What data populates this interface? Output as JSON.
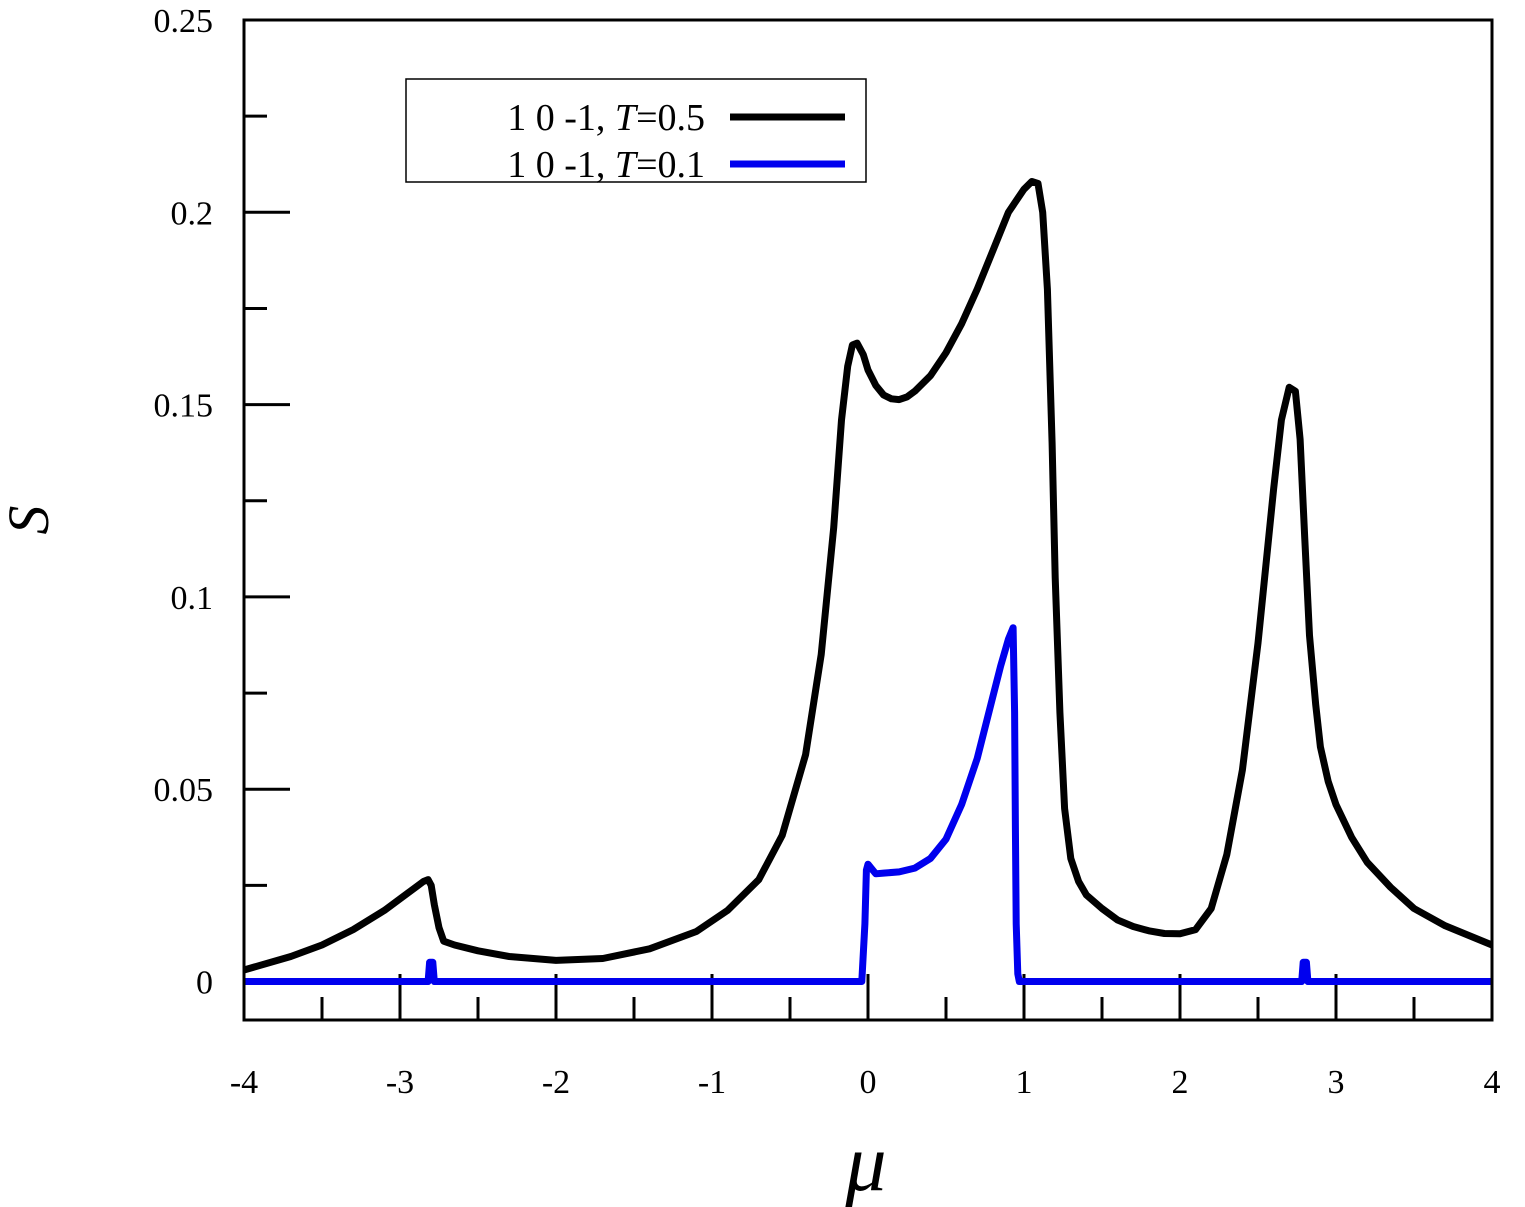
{
  "chart_data": {
    "type": "line",
    "xlabel": "μ",
    "ylabel": "S",
    "xlim": [
      -4,
      4
    ],
    "ylim": [
      -0.01,
      0.25
    ],
    "x_ticks": [
      -4,
      -3,
      -2,
      -1,
      0,
      1,
      2,
      3,
      4
    ],
    "x_tick_labels": [
      "-4",
      "-3",
      "-2",
      "-1",
      "0",
      "1",
      "2",
      "3",
      "4"
    ],
    "x_minor_step": 0.5,
    "y_ticks": [
      0,
      0.05,
      0.1,
      0.15,
      0.2,
      0.25
    ],
    "y_tick_labels": [
      "0",
      "0.05",
      "0.1",
      "0.15",
      "0.2",
      "0.25"
    ],
    "y_minor_step": 0.025,
    "grid": false,
    "legend_position": "top-left",
    "series": [
      {
        "name": "1 0 -1, T=0.5",
        "name_parts": [
          "1 0 -1, ",
          "T",
          "=0.5"
        ],
        "color": "#000000",
        "x": [
          -4.0,
          -3.7,
          -3.5,
          -3.3,
          -3.1,
          -2.95,
          -2.85,
          -2.82,
          -2.8,
          -2.78,
          -2.75,
          -2.72,
          -2.65,
          -2.5,
          -2.3,
          -2.0,
          -1.7,
          -1.4,
          -1.1,
          -0.9,
          -0.7,
          -0.55,
          -0.4,
          -0.3,
          -0.22,
          -0.17,
          -0.13,
          -0.1,
          -0.07,
          -0.03,
          0.0,
          0.05,
          0.1,
          0.15,
          0.2,
          0.25,
          0.3,
          0.4,
          0.5,
          0.6,
          0.7,
          0.8,
          0.9,
          1.0,
          1.05,
          1.09,
          1.12,
          1.15,
          1.18,
          1.2,
          1.23,
          1.26,
          1.3,
          1.35,
          1.4,
          1.5,
          1.6,
          1.7,
          1.8,
          1.9,
          2.0,
          2.1,
          2.2,
          2.3,
          2.4,
          2.5,
          2.6,
          2.65,
          2.7,
          2.74,
          2.77,
          2.8,
          2.83,
          2.87,
          2.9,
          2.95,
          3.0,
          3.1,
          3.2,
          3.35,
          3.5,
          3.7,
          3.85,
          4.0
        ],
        "values": [
          0.003,
          0.0065,
          0.0095,
          0.0135,
          0.0185,
          0.023,
          0.026,
          0.0265,
          0.025,
          0.02,
          0.014,
          0.0105,
          0.0095,
          0.008,
          0.0065,
          0.0055,
          0.006,
          0.0085,
          0.013,
          0.0185,
          0.0265,
          0.038,
          0.059,
          0.085,
          0.118,
          0.146,
          0.16,
          0.1655,
          0.166,
          0.163,
          0.159,
          0.155,
          0.1525,
          0.1515,
          0.1513,
          0.152,
          0.1535,
          0.1575,
          0.1635,
          0.171,
          0.18,
          0.19,
          0.2,
          0.206,
          0.208,
          0.2075,
          0.2,
          0.18,
          0.14,
          0.105,
          0.07,
          0.045,
          0.032,
          0.026,
          0.0225,
          0.019,
          0.016,
          0.0143,
          0.0132,
          0.0125,
          0.0124,
          0.0135,
          0.019,
          0.033,
          0.055,
          0.088,
          0.128,
          0.146,
          0.1545,
          0.1535,
          0.141,
          0.115,
          0.09,
          0.072,
          0.061,
          0.052,
          0.046,
          0.0375,
          0.031,
          0.0245,
          0.019,
          0.0145,
          0.012,
          0.0095
        ]
      },
      {
        "name": "1 0 -1, T=0.1",
        "name_parts": [
          "1 0 -1, ",
          "T",
          "=0.1"
        ],
        "color": "#0000ee",
        "x": [
          -4.0,
          -2.82,
          -2.81,
          -2.79,
          -2.78,
          -0.04,
          -0.02,
          -0.01,
          0.0,
          0.02,
          0.05,
          0.1,
          0.2,
          0.3,
          0.4,
          0.5,
          0.6,
          0.7,
          0.8,
          0.85,
          0.9,
          0.93,
          0.94,
          0.945,
          0.95,
          0.96,
          0.97,
          1.0,
          2.78,
          2.79,
          2.81,
          2.82,
          4.0
        ],
        "values": [
          0.0,
          0.0,
          0.005,
          0.005,
          0.0,
          0.0,
          0.015,
          0.029,
          0.0305,
          0.0295,
          0.028,
          0.0282,
          0.0285,
          0.0295,
          0.032,
          0.037,
          0.046,
          0.058,
          0.074,
          0.082,
          0.089,
          0.092,
          0.07,
          0.04,
          0.015,
          0.002,
          0.0,
          0.0,
          0.0,
          0.005,
          0.005,
          0.0,
          0.0
        ]
      }
    ]
  }
}
